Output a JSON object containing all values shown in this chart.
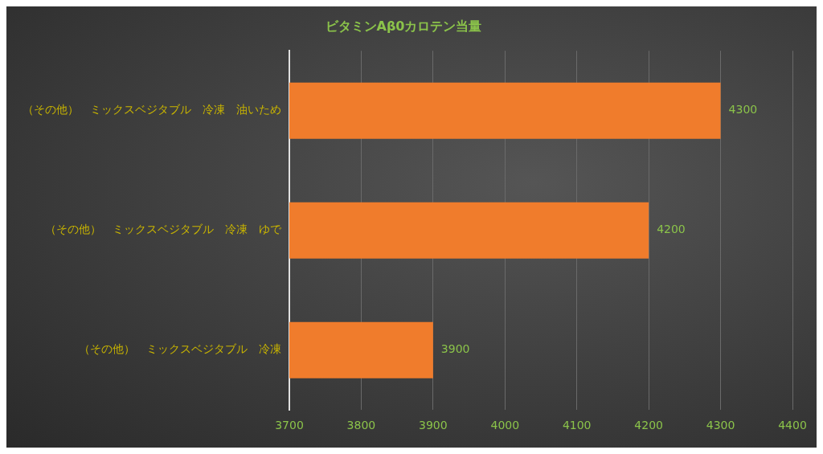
{
  "chart_data": {
    "type": "bar",
    "orientation": "horizontal",
    "title": "ビタミンAβ0カロテン当量",
    "categories": [
      "（その他）　ミックスベジタブル　冷凍　油いため",
      "（その他）　ミックスベジタブル　冷凍　ゆで",
      "（その他）　ミックスベジタブル　冷凍"
    ],
    "values": [
      4300,
      4200,
      3900
    ],
    "color": "#f07c2c",
    "xlim": [
      3700,
      4400
    ],
    "xticks": [
      3700,
      3800,
      3900,
      4000,
      4100,
      4200,
      4300,
      4400
    ],
    "grid": "x",
    "legend": false,
    "data_labels": true
  }
}
